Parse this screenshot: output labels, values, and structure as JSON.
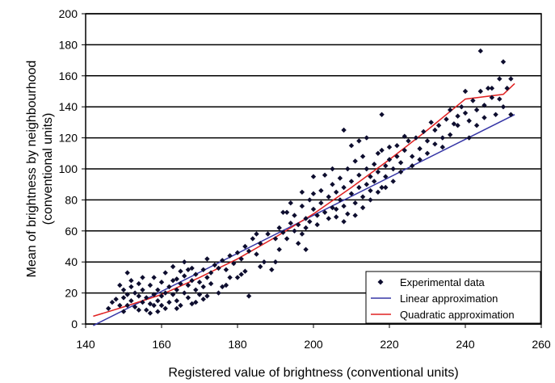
{
  "chart_data": {
    "type": "scatter",
    "title": "",
    "xlabel": "Registered value of brightness (conventional units)",
    "ylabel_lines": [
      "Mean of brightness by neighbourhood",
      "(conventional units)"
    ],
    "xlim": [
      140,
      260
    ],
    "ylim": [
      0,
      200
    ],
    "x_ticks": [
      140,
      160,
      180,
      200,
      220,
      240,
      260
    ],
    "y_ticks": [
      0,
      20,
      40,
      60,
      80,
      100,
      120,
      140,
      160,
      180,
      200
    ],
    "grid": "horizontal",
    "legend_position": "bottom-right",
    "series": [
      {
        "name": "Experimental data",
        "kind": "scatter",
        "color": "#0d0d2e",
        "points": [
          [
            147,
            14
          ],
          [
            148,
            16
          ],
          [
            149,
            12
          ],
          [
            150,
            22
          ],
          [
            150,
            17
          ],
          [
            151,
            33
          ],
          [
            151,
            19
          ],
          [
            152,
            15
          ],
          [
            152,
            24
          ],
          [
            153,
            11
          ],
          [
            153,
            20
          ],
          [
            154,
            18
          ],
          [
            154,
            26
          ],
          [
            155,
            14
          ],
          [
            155,
            22
          ],
          [
            156,
            9
          ],
          [
            156,
            17
          ],
          [
            157,
            25
          ],
          [
            157,
            13
          ],
          [
            158,
            19
          ],
          [
            158,
            30
          ],
          [
            159,
            15
          ],
          [
            159,
            22
          ],
          [
            160,
            12
          ],
          [
            160,
            18
          ],
          [
            160,
            27
          ],
          [
            161,
            20
          ],
          [
            161,
            33
          ],
          [
            162,
            14
          ],
          [
            162,
            24
          ],
          [
            163,
            19
          ],
          [
            163,
            37
          ],
          [
            164,
            22
          ],
          [
            164,
            29
          ],
          [
            164,
            15
          ],
          [
            165,
            26
          ],
          [
            165,
            34
          ],
          [
            166,
            20
          ],
          [
            166,
            31
          ],
          [
            166,
            40
          ],
          [
            167,
            25
          ],
          [
            167,
            17
          ],
          [
            168,
            28
          ],
          [
            168,
            36
          ],
          [
            169,
            22
          ],
          [
            169,
            32
          ],
          [
            170,
            27
          ],
          [
            170,
            19
          ],
          [
            171,
            35
          ],
          [
            171,
            24
          ],
          [
            172,
            30
          ],
          [
            172,
            42
          ],
          [
            173,
            33
          ],
          [
            174,
            38
          ],
          [
            175,
            36
          ],
          [
            176,
            41
          ],
          [
            177,
            35
          ],
          [
            178,
            44
          ],
          [
            179,
            39
          ],
          [
            180,
            46
          ],
          [
            181,
            42
          ],
          [
            182,
            50
          ],
          [
            183,
            47
          ],
          [
            184,
            55
          ],
          [
            185,
            45
          ],
          [
            186,
            52
          ],
          [
            188,
            58
          ],
          [
            190,
            55
          ],
          [
            191,
            62
          ],
          [
            192,
            59
          ],
          [
            193,
            72
          ],
          [
            194,
            65
          ],
          [
            195,
            70
          ],
          [
            196,
            64
          ],
          [
            197,
            76
          ],
          [
            198,
            68
          ],
          [
            199,
            80
          ],
          [
            200,
            74
          ],
          [
            200,
            84
          ],
          [
            201,
            70
          ],
          [
            202,
            78
          ],
          [
            202,
            86
          ],
          [
            203,
            72
          ],
          [
            203,
            96
          ],
          [
            204,
            82
          ],
          [
            205,
            75
          ],
          [
            205,
            90
          ],
          [
            206,
            69
          ],
          [
            206,
            85
          ],
          [
            207,
            80
          ],
          [
            207,
            94
          ],
          [
            208,
            76
          ],
          [
            208,
            88
          ],
          [
            209,
            71
          ],
          [
            209,
            100
          ],
          [
            210,
            84
          ],
          [
            210,
            92
          ],
          [
            211,
            78
          ],
          [
            211,
            105
          ],
          [
            212,
            88
          ],
          [
            212,
            96
          ],
          [
            213,
            82
          ],
          [
            213,
            108
          ],
          [
            214,
            90
          ],
          [
            214,
            100
          ],
          [
            215,
            86
          ],
          [
            215,
            95
          ],
          [
            216,
            103
          ],
          [
            216,
            92
          ],
          [
            217,
            110
          ],
          [
            217,
            98
          ],
          [
            218,
            88
          ],
          [
            218,
            112
          ],
          [
            219,
            102
          ],
          [
            219,
            95
          ],
          [
            220,
            106
          ],
          [
            220,
            114
          ],
          [
            221,
            100
          ],
          [
            222,
            108
          ],
          [
            222,
            115
          ],
          [
            223,
            104
          ],
          [
            224,
            112
          ],
          [
            225,
            118
          ],
          [
            226,
            108
          ],
          [
            227,
            120
          ],
          [
            228,
            113
          ],
          [
            229,
            124
          ],
          [
            230,
            118
          ],
          [
            231,
            130
          ],
          [
            232,
            125
          ],
          [
            233,
            128
          ],
          [
            234,
            120
          ],
          [
            235,
            132
          ],
          [
            236,
            138
          ],
          [
            237,
            129
          ],
          [
            238,
            134
          ],
          [
            239,
            140
          ],
          [
            240,
            136
          ],
          [
            240,
            150
          ],
          [
            241,
            131
          ],
          [
            242,
            144
          ],
          [
            243,
            138
          ],
          [
            244,
            150
          ],
          [
            244,
            176
          ],
          [
            245,
            141
          ],
          [
            246,
            152
          ],
          [
            247,
            146
          ],
          [
            248,
            135
          ],
          [
            249,
            158
          ],
          [
            250,
            169
          ],
          [
            250,
            140
          ],
          [
            251,
            152
          ],
          [
            252,
            158
          ],
          [
            252,
            135
          ],
          [
            146,
            10
          ],
          [
            149,
            25
          ],
          [
            152,
            28
          ],
          [
            155,
            30
          ],
          [
            158,
            12
          ],
          [
            161,
            10
          ],
          [
            163,
            28
          ],
          [
            165,
            12
          ],
          [
            167,
            35
          ],
          [
            169,
            14
          ],
          [
            171,
            16
          ],
          [
            173,
            26
          ],
          [
            176,
            24
          ],
          [
            178,
            30
          ],
          [
            181,
            32
          ],
          [
            183,
            18
          ],
          [
            185,
            58
          ],
          [
            187,
            40
          ],
          [
            189,
            35
          ],
          [
            191,
            48
          ],
          [
            193,
            55
          ],
          [
            195,
            60
          ],
          [
            197,
            58
          ],
          [
            198,
            62
          ],
          [
            199,
            66
          ],
          [
            201,
            64
          ],
          [
            204,
            68
          ],
          [
            206,
            74
          ],
          [
            208,
            66
          ],
          [
            211,
            70
          ],
          [
            213,
            75
          ],
          [
            215,
            80
          ],
          [
            217,
            85
          ],
          [
            219,
            88
          ],
          [
            221,
            92
          ],
          [
            223,
            98
          ],
          [
            224,
            121
          ],
          [
            226,
            102
          ],
          [
            228,
            106
          ],
          [
            230,
            110
          ],
          [
            232,
            116
          ],
          [
            234,
            114
          ],
          [
            236,
            122
          ],
          [
            238,
            128
          ],
          [
            241,
            120
          ],
          [
            243,
            128
          ],
          [
            245,
            133
          ],
          [
            247,
            152
          ],
          [
            249,
            145
          ],
          [
            214,
            120
          ],
          [
            218,
            135
          ],
          [
            212,
            118
          ],
          [
            210,
            115
          ],
          [
            208,
            125
          ],
          [
            205,
            100
          ],
          [
            200,
            95
          ],
          [
            197,
            85
          ],
          [
            194,
            78
          ],
          [
            192,
            72
          ],
          [
            196,
            52
          ],
          [
            198,
            48
          ],
          [
            190,
            40
          ],
          [
            186,
            37
          ],
          [
            182,
            34
          ],
          [
            180,
            30
          ],
          [
            177,
            25
          ],
          [
            175,
            20
          ],
          [
            172,
            18
          ],
          [
            168,
            13
          ],
          [
            164,
            10
          ],
          [
            159,
            8
          ],
          [
            157,
            7
          ],
          [
            154,
            9
          ],
          [
            151,
            12
          ],
          [
            150,
            8
          ]
        ]
      },
      {
        "name": "Linear approximation",
        "kind": "line",
        "color": "#3636a6",
        "x": [
          142,
          253
        ],
        "y": [
          -1,
          135
        ]
      },
      {
        "name": "Quadratic approximation",
        "kind": "line",
        "color": "#e02020",
        "x": [
          142,
          150,
          160,
          170,
          180,
          190,
          200,
          210,
          220,
          230,
          240,
          250,
          253
        ],
        "y": [
          5,
          11,
          19,
          30,
          42,
          56,
          71,
          88,
          106,
          125,
          145,
          148,
          155
        ]
      }
    ]
  }
}
